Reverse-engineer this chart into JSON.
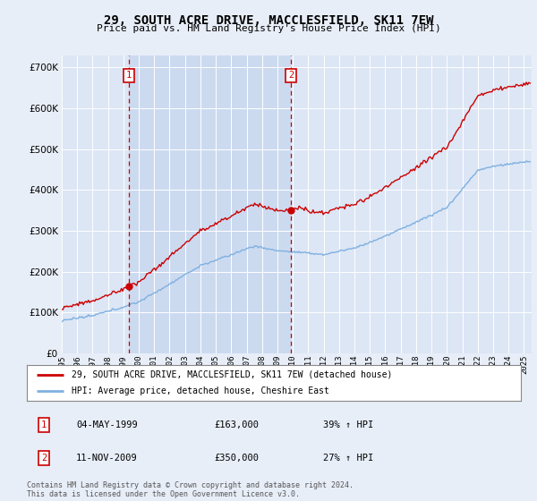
{
  "title": "29, SOUTH ACRE DRIVE, MACCLESFIELD, SK11 7EW",
  "subtitle": "Price paid vs. HM Land Registry's House Price Index (HPI)",
  "background_color": "#e8eef8",
  "plot_bg_color": "#dce6f5",
  "highlight_bg_color": "#ccdaf0",
  "grid_color": "#ffffff",
  "hpi_line_color": "#7fb0e0",
  "price_line_color": "#cc0000",
  "marker_color": "#cc0000",
  "transaction1": {
    "date_num": 1999.35,
    "price": 163000,
    "label": "1",
    "date_str": "04-MAY-1999",
    "pct": "39%"
  },
  "transaction2": {
    "date_num": 2009.87,
    "price": 350000,
    "label": "2",
    "date_str": "11-NOV-2009",
    "pct": "27%"
  },
  "ylim": [
    0,
    730000
  ],
  "xlim_start": 1995.0,
  "xlim_end": 2025.5,
  "yticks": [
    0,
    100000,
    200000,
    300000,
    400000,
    500000,
    600000,
    700000
  ],
  "xtick_years": [
    1995,
    1996,
    1997,
    1998,
    1999,
    2000,
    2001,
    2002,
    2003,
    2004,
    2005,
    2006,
    2007,
    2008,
    2009,
    2010,
    2011,
    2012,
    2013,
    2014,
    2015,
    2016,
    2017,
    2018,
    2019,
    2020,
    2021,
    2022,
    2023,
    2024,
    2025
  ],
  "legend_label_price": "29, SOUTH ACRE DRIVE, MACCLESFIELD, SK11 7EW (detached house)",
  "legend_label_hpi": "HPI: Average price, detached house, Cheshire East",
  "footer": "Contains HM Land Registry data © Crown copyright and database right 2024.\nThis data is licensed under the Open Government Licence v3.0."
}
